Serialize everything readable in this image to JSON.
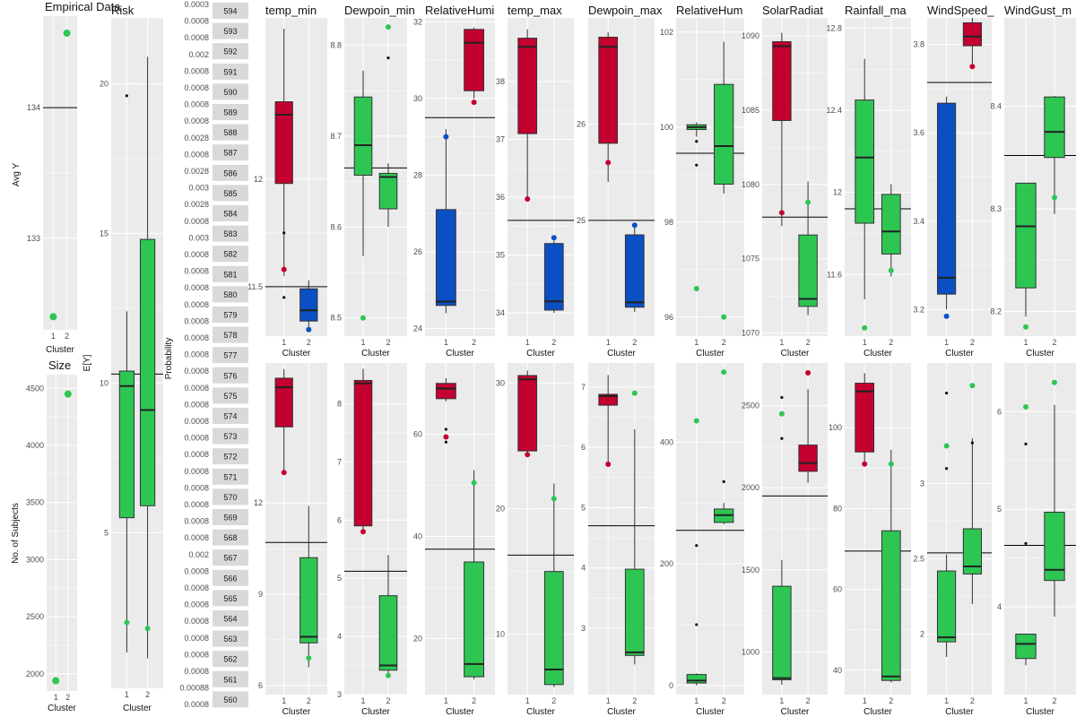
{
  "colors": {
    "cluster_red": "#C3002F",
    "cluster_blue": "#0A4FC4",
    "cluster_green": "#2DC653",
    "panel_bg": "#EBEBEB",
    "grid": "#FFFFFF",
    "strip_bg": "#D9D9D9"
  },
  "empirical_panel": {
    "title": "Empirical Data",
    "ylabel": "Avg Y",
    "xlabel": "Cluster",
    "ylim": [
      132.3,
      134.7
    ],
    "ticks": [
      133,
      134
    ],
    "hline": 134,
    "points": [
      {
        "cluster": 1,
        "y": 132.4
      },
      {
        "cluster": 2,
        "y": 134.57
      }
    ]
  },
  "size_panel": {
    "title": "Size",
    "ylabel": "No. of Subjects",
    "xlabel": "Cluster",
    "ylim": [
      1850,
      4620
    ],
    "ticks": [
      2000,
      2500,
      3000,
      3500,
      4000,
      4500
    ],
    "points": [
      {
        "cluster": 1,
        "y": 1940
      },
      {
        "cluster": 2,
        "y": 4450
      }
    ]
  },
  "risk_panel": {
    "title": "Risk",
    "ylabel": "E[Y]",
    "xlabel": "Cluster",
    "ylim": [
      -0.2,
      22.2
    ],
    "ticks": [
      5,
      10,
      15,
      20
    ],
    "hline": 10.3,
    "boxes": [
      {
        "cluster": 1,
        "color": "cluster_green",
        "q1": 5.5,
        "median": 9.9,
        "q3": 10.4,
        "wlo": 1.0,
        "whi": 12.4,
        "outliers": [
          19.6
        ],
        "mean": 2.0
      },
      {
        "cluster": 2,
        "color": "cluster_green",
        "q1": 5.9,
        "median": 9.1,
        "q3": 14.8,
        "wlo": 0.8,
        "whi": 20.9,
        "outliers": [],
        "mean": 1.8
      }
    ]
  },
  "probability_panel": {
    "ylabel": "Probability",
    "tick_labels": [
      "0.0003",
      "0.0008",
      "0.0008",
      "0.002",
      "0.0008",
      "0.0008",
      "0.0008",
      "0.0008",
      "0.0028",
      "0.0008",
      "0.0028",
      "0.003",
      "0.0028",
      "0.0008",
      "0.003",
      "0.0008",
      "0.0008",
      "0.0008",
      "0.0008",
      "0.0008",
      "0.0008",
      "0.0008",
      "0.0008",
      "0.0008",
      "0.0008",
      "0.0008",
      "0.0008",
      "0.0008",
      "0.0008",
      "0.0008",
      "0.0008",
      "0.0008",
      "0.0008",
      "0.002",
      "0.0008",
      "0.0008",
      "0.0008",
      "0.0008",
      "0.0008",
      "0.0008",
      "0.0008",
      "0.00088",
      "0.0008"
    ],
    "strips": [
      "594",
      "593",
      "592",
      "591",
      "590",
      "589",
      "588",
      "587",
      "586",
      "585",
      "584",
      "583",
      "582",
      "581",
      "580",
      "579",
      "578",
      "577",
      "576",
      "575",
      "574",
      "573",
      "572",
      "571",
      "570",
      "569",
      "568",
      "567",
      "566",
      "565",
      "564",
      "563",
      "562",
      "561",
      "560"
    ]
  },
  "chart_data": [
    {
      "type": "box",
      "title": "temp_min",
      "xlabel": "Cluster",
      "ylim": [
        11.27,
        12.75
      ],
      "ticks": [
        11.5,
        12.0
      ],
      "hline": 11.5,
      "boxes": [
        {
          "cluster": 1,
          "color": "cluster_red",
          "q1": 11.98,
          "median": 12.3,
          "q3": 12.36,
          "wlo": 11.55,
          "whi": 12.7,
          "outliers": [
            11.58,
            11.45,
            11.75
          ],
          "mean": 11.58
        },
        {
          "cluster": 2,
          "color": "cluster_blue",
          "q1": 11.34,
          "median": 11.39,
          "q3": 11.49,
          "wlo": 11.3,
          "whi": 11.53,
          "outliers": [],
          "mean": 11.3
        }
      ]
    },
    {
      "type": "box",
      "title": "Dewpoin_min",
      "xlabel": "Cluster",
      "ylim": [
        8.48,
        8.83
      ],
      "ticks": [
        8.5,
        8.6,
        8.7,
        8.8
      ],
      "hline": 8.665,
      "boxes": [
        {
          "cluster": 1,
          "color": "cluster_green",
          "q1": 8.657,
          "median": 8.69,
          "q3": 8.743,
          "wlo": 8.568,
          "whi": 8.772,
          "outliers": [],
          "mean": 8.5
        },
        {
          "cluster": 2,
          "color": "cluster_green",
          "q1": 8.62,
          "median": 8.655,
          "q3": 8.659,
          "wlo": 8.6,
          "whi": 8.67,
          "outliers": [
            8.786
          ],
          "mean": 8.82
        }
      ]
    },
    {
      "type": "box",
      "title": "RelativeHumi",
      "xlabel": "Cluster",
      "ylim": [
        23.8,
        32.1
      ],
      "ticks": [
        24,
        26,
        28,
        30,
        32
      ],
      "hline": 29.5,
      "boxes": [
        {
          "cluster": 1,
          "color": "cluster_blue",
          "q1": 24.6,
          "median": 24.7,
          "q3": 27.1,
          "wlo": 24.4,
          "whi": 29.2,
          "outliers": [],
          "mean": 29.0
        },
        {
          "cluster": 2,
          "color": "cluster_red",
          "q1": 30.2,
          "median": 31.45,
          "q3": 31.8,
          "wlo": 30.0,
          "whi": 31.85,
          "outliers": [],
          "mean": 29.9
        }
      ]
    },
    {
      "type": "box",
      "title": "temp_max",
      "xlabel": "Cluster",
      "ylim": [
        33.6,
        39.1
      ],
      "ticks": [
        34,
        35,
        36,
        37,
        38
      ],
      "hline": 35.6,
      "boxes": [
        {
          "cluster": 1,
          "color": "cluster_red",
          "q1": 37.1,
          "median": 38.6,
          "q3": 38.75,
          "wlo": 35.95,
          "whi": 38.9,
          "outliers": [],
          "mean": 35.97
        },
        {
          "cluster": 2,
          "color": "cluster_blue",
          "q1": 34.05,
          "median": 34.2,
          "q3": 35.2,
          "wlo": 34.0,
          "whi": 35.25,
          "outliers": [],
          "mean": 35.3
        }
      ]
    },
    {
      "type": "box",
      "title": "Dewpoin_max",
      "xlabel": "Cluster",
      "ylim": [
        23.8,
        27.1
      ],
      "ticks": [
        25,
        26
      ],
      "hline": 25.0,
      "boxes": [
        {
          "cluster": 1,
          "color": "cluster_red",
          "q1": 25.8,
          "median": 26.8,
          "q3": 26.9,
          "wlo": 25.4,
          "whi": 26.95,
          "outliers": [],
          "mean": 25.6
        },
        {
          "cluster": 2,
          "color": "cluster_blue",
          "q1": 24.1,
          "median": 24.15,
          "q3": 24.85,
          "wlo": 24.05,
          "whi": 24.95,
          "outliers": [],
          "mean": 24.95
        }
      ]
    },
    {
      "type": "box",
      "title": "RelativeHum",
      "xlabel": "Cluster",
      "ylim": [
        95.6,
        102.3
      ],
      "ticks": [
        96,
        98,
        100,
        102
      ],
      "hline": 99.45,
      "boxes": [
        {
          "cluster": 1,
          "color": "cluster_green",
          "q1": 99.95,
          "median": 100.0,
          "q3": 100.05,
          "wlo": 99.8,
          "whi": 100.1,
          "outliers": [
            99.7,
            99.2
          ],
          "mean": 96.6
        },
        {
          "cluster": 2,
          "color": "cluster_green",
          "q1": 98.8,
          "median": 99.6,
          "q3": 100.9,
          "wlo": 98.6,
          "whi": 101.8,
          "outliers": [],
          "mean": 96.0
        }
      ]
    },
    {
      "type": "box",
      "title": "SolarRadiat",
      "xlabel": "Cluster",
      "ylim": [
        1069.8,
        1091.2
      ],
      "ticks": [
        1070,
        1075,
        1080,
        1085,
        1090
      ],
      "hline": 1077.8,
      "boxes": [
        {
          "cluster": 1,
          "color": "cluster_red",
          "q1": 1084.3,
          "median": 1089.3,
          "q3": 1089.6,
          "wlo": 1077.2,
          "whi": 1090.2,
          "outliers": [],
          "mean": 1078.1
        },
        {
          "cluster": 2,
          "color": "cluster_green",
          "q1": 1071.8,
          "median": 1072.3,
          "q3": 1076.6,
          "wlo": 1071.2,
          "whi": 1080.2,
          "outliers": [],
          "mean": 1078.8
        }
      ]
    },
    {
      "type": "box",
      "title": "Rainfall_ma",
      "xlabel": "Cluster",
      "ylim": [
        11.3,
        12.85
      ],
      "ticks": [
        11.6,
        12.0,
        12.4,
        12.8
      ],
      "hline": 11.92,
      "boxes": [
        {
          "cluster": 1,
          "color": "cluster_green",
          "q1": 11.85,
          "median": 12.17,
          "q3": 12.45,
          "wlo": 11.48,
          "whi": 12.65,
          "outliers": [],
          "mean": 11.34
        },
        {
          "cluster": 2,
          "color": "cluster_green",
          "q1": 11.7,
          "median": 11.81,
          "q3": 11.99,
          "wlo": 11.59,
          "whi": 12.04,
          "outliers": [],
          "mean": 11.62
        }
      ]
    },
    {
      "type": "box",
      "title": "WindSpeed_",
      "xlabel": "Cluster",
      "ylim": [
        3.14,
        3.86
      ],
      "ticks": [
        3.2,
        3.4,
        3.6,
        3.8
      ],
      "hline": 3.714,
      "boxes": [
        {
          "cluster": 1,
          "color": "cluster_blue",
          "q1": 3.235,
          "median": 3.272,
          "q3": 3.667,
          "wlo": 3.2,
          "whi": 3.682,
          "outliers": [],
          "mean": 3.185
        },
        {
          "cluster": 2,
          "color": "cluster_red",
          "q1": 3.797,
          "median": 3.818,
          "q3": 3.849,
          "wlo": 3.755,
          "whi": 3.86,
          "outliers": [],
          "mean": 3.75
        }
      ]
    },
    {
      "type": "box",
      "title": "WindGust_m",
      "xlabel": "Cluster",
      "ylim": [
        8.176,
        8.486
      ],
      "ticks": [
        8.2,
        8.3,
        8.4
      ],
      "hline": 8.352,
      "boxes": [
        {
          "cluster": 1,
          "color": "cluster_green",
          "q1": 8.223,
          "median": 8.283,
          "q3": 8.325,
          "wlo": 8.195,
          "whi": 8.325,
          "outliers": [],
          "mean": 8.185
        },
        {
          "cluster": 2,
          "color": "cluster_green",
          "q1": 8.35,
          "median": 8.375,
          "q3": 8.409,
          "wlo": 8.295,
          "whi": 8.41,
          "outliers": [],
          "mean": 8.311
        }
      ]
    },
    {
      "type": "box",
      "title": "",
      "xlabel": "Cluster",
      "ylim": [
        5.7,
        16.6
      ],
      "ticks": [
        6,
        9,
        12
      ],
      "hline": 10.7,
      "boxes": [
        {
          "cluster": 1,
          "color": "cluster_red",
          "q1": 14.5,
          "median": 15.8,
          "q3": 16.1,
          "wlo": 13.0,
          "whi": 16.4,
          "outliers": [],
          "mean": 13.0
        },
        {
          "cluster": 2,
          "color": "cluster_green",
          "q1": 7.4,
          "median": 7.6,
          "q3": 10.2,
          "wlo": 6.6,
          "whi": 11.9,
          "outliers": [],
          "mean": 6.9
        }
      ]
    },
    {
      "type": "box",
      "title": "",
      "xlabel": "Cluster",
      "ylim": [
        3.0,
        8.7
      ],
      "ticks": [
        3,
        4,
        5,
        6,
        7,
        8
      ],
      "hline": 5.12,
      "boxes": [
        {
          "cluster": 1,
          "color": "cluster_red",
          "q1": 5.9,
          "median": 8.35,
          "q3": 8.4,
          "wlo": 5.8,
          "whi": 8.6,
          "outliers": [],
          "mean": 5.8
        },
        {
          "cluster": 2,
          "color": "cluster_green",
          "q1": 3.42,
          "median": 3.5,
          "q3": 4.7,
          "wlo": 3.3,
          "whi": 5.4,
          "outliers": [],
          "mean": 3.33
        }
      ]
    },
    {
      "type": "box",
      "title": "",
      "xlabel": "Cluster",
      "ylim": [
        9.0,
        74.0
      ],
      "ticks": [
        20,
        40,
        60
      ],
      "hline": 37.5,
      "boxes": [
        {
          "cluster": 1,
          "color": "cluster_red",
          "q1": 67.0,
          "median": 69.0,
          "q3": 70.0,
          "wlo": 66.5,
          "whi": 71.0,
          "outliers": [
            61.0,
            58.5
          ],
          "mean": 59.5
        },
        {
          "cluster": 2,
          "color": "cluster_green",
          "q1": 12.5,
          "median": 15.0,
          "q3": 35.0,
          "wlo": 12.0,
          "whi": 53.0,
          "outliers": [],
          "mean": 50.5
        }
      ]
    },
    {
      "type": "box",
      "title": "",
      "xlabel": "Cluster",
      "ylim": [
        5.2,
        31.6
      ],
      "ticks": [
        10,
        20,
        30
      ],
      "hline": 16.3,
      "boxes": [
        {
          "cluster": 1,
          "color": "cluster_red",
          "q1": 24.6,
          "median": 30.3,
          "q3": 30.6,
          "wlo": 24.3,
          "whi": 31.0,
          "outliers": [],
          "mean": 24.3
        },
        {
          "cluster": 2,
          "color": "cluster_green",
          "q1": 6.0,
          "median": 7.2,
          "q3": 15.0,
          "wlo": 5.8,
          "whi": 22.0,
          "outliers": [],
          "mean": 20.8
        }
      ]
    },
    {
      "type": "box",
      "title": "",
      "xlabel": "Cluster",
      "ylim": [
        1.9,
        7.4
      ],
      "ticks": [
        3,
        4,
        5,
        6,
        7
      ],
      "hline": 4.7,
      "boxes": [
        {
          "cluster": 1,
          "color": "cluster_red",
          "q1": 6.7,
          "median": 6.85,
          "q3": 6.88,
          "wlo": 5.75,
          "whi": 7.2,
          "outliers": [],
          "mean": 5.72
        },
        {
          "cluster": 2,
          "color": "cluster_green",
          "q1": 2.55,
          "median": 2.6,
          "q3": 3.98,
          "wlo": 2.4,
          "whi": 6.3,
          "outliers": [],
          "mean": 6.9
        }
      ]
    },
    {
      "type": "box",
      "title": "",
      "xlabel": "Cluster",
      "ylim": [
        -15,
        530
      ],
      "ticks": [
        0,
        200,
        400
      ],
      "hline": 255,
      "boxes": [
        {
          "cluster": 1,
          "color": "cluster_green",
          "q1": 4,
          "median": 8,
          "q3": 18,
          "wlo": 0,
          "whi": 20,
          "outliers": [
            100,
            230
          ],
          "mean": 435
        },
        {
          "cluster": 2,
          "color": "cluster_green",
          "q1": 268,
          "median": 280,
          "q3": 290,
          "wlo": 265,
          "whi": 300,
          "outliers": [
            335
          ],
          "mean": 515
        }
      ]
    },
    {
      "type": "box",
      "title": "",
      "xlabel": "Cluster",
      "ylim": [
        740,
        2760
      ],
      "ticks": [
        1000,
        1500,
        2000,
        2500
      ],
      "hline": 1950,
      "boxes": [
        {
          "cluster": 1,
          "color": "cluster_green",
          "q1": 830,
          "median": 840,
          "q3": 1400,
          "wlo": 800,
          "whi": 1560,
          "outliers": [
            2300,
            2550
          ],
          "mean": 2450
        },
        {
          "cluster": 2,
          "color": "cluster_red",
          "q1": 2100,
          "median": 2150,
          "q3": 2260,
          "wlo": 2030,
          "whi": 2600,
          "outliers": [],
          "mean": 2700
        }
      ]
    },
    {
      "type": "box",
      "title": "",
      "xlabel": "Cluster",
      "ylim": [
        34,
        116
      ],
      "ticks": [
        40,
        60,
        80,
        100
      ],
      "hline": 69.5,
      "boxes": [
        {
          "cluster": 1,
          "color": "cluster_red",
          "q1": 94,
          "median": 109,
          "q3": 111,
          "wlo": 90.5,
          "whi": 113.5,
          "outliers": [],
          "mean": 91
        },
        {
          "cluster": 2,
          "color": "cluster_green",
          "q1": 37.5,
          "median": 38.5,
          "q3": 74.5,
          "wlo": 37,
          "whi": 94.5,
          "outliers": [],
          "mean": 91
        }
      ]
    },
    {
      "type": "box",
      "title": "",
      "xlabel": "Cluster",
      "ylim": [
        1.6,
        3.8
      ],
      "ticks": [
        2.0,
        2.5,
        3.0
      ],
      "hline": 2.54,
      "boxes": [
        {
          "cluster": 1,
          "color": "cluster_green",
          "q1": 1.95,
          "median": 1.98,
          "q3": 2.42,
          "wlo": 1.85,
          "whi": 2.53,
          "outliers": [
            3.1,
            3.6
          ],
          "mean": 3.25
        },
        {
          "cluster": 2,
          "color": "cluster_green",
          "q1": 2.4,
          "median": 2.45,
          "q3": 2.7,
          "wlo": 2.2,
          "whi": 3.3,
          "outliers": [
            3.27
          ],
          "mean": 3.65
        }
      ]
    },
    {
      "type": "box",
      "title": "",
      "xlabel": "Cluster",
      "ylim": [
        3.1,
        6.5
      ],
      "ticks": [
        4,
        5,
        6
      ],
      "hline": 4.63,
      "boxes": [
        {
          "cluster": 1,
          "color": "cluster_green",
          "q1": 3.47,
          "median": 3.62,
          "q3": 3.72,
          "wlo": 3.4,
          "whi": 3.72,
          "outliers": [
            4.65,
            5.67
          ],
          "mean": 6.05
        },
        {
          "cluster": 2,
          "color": "cluster_green",
          "q1": 4.27,
          "median": 4.38,
          "q3": 4.97,
          "wlo": 3.9,
          "whi": 6.07,
          "outliers": [],
          "mean": 6.3
        }
      ]
    }
  ]
}
